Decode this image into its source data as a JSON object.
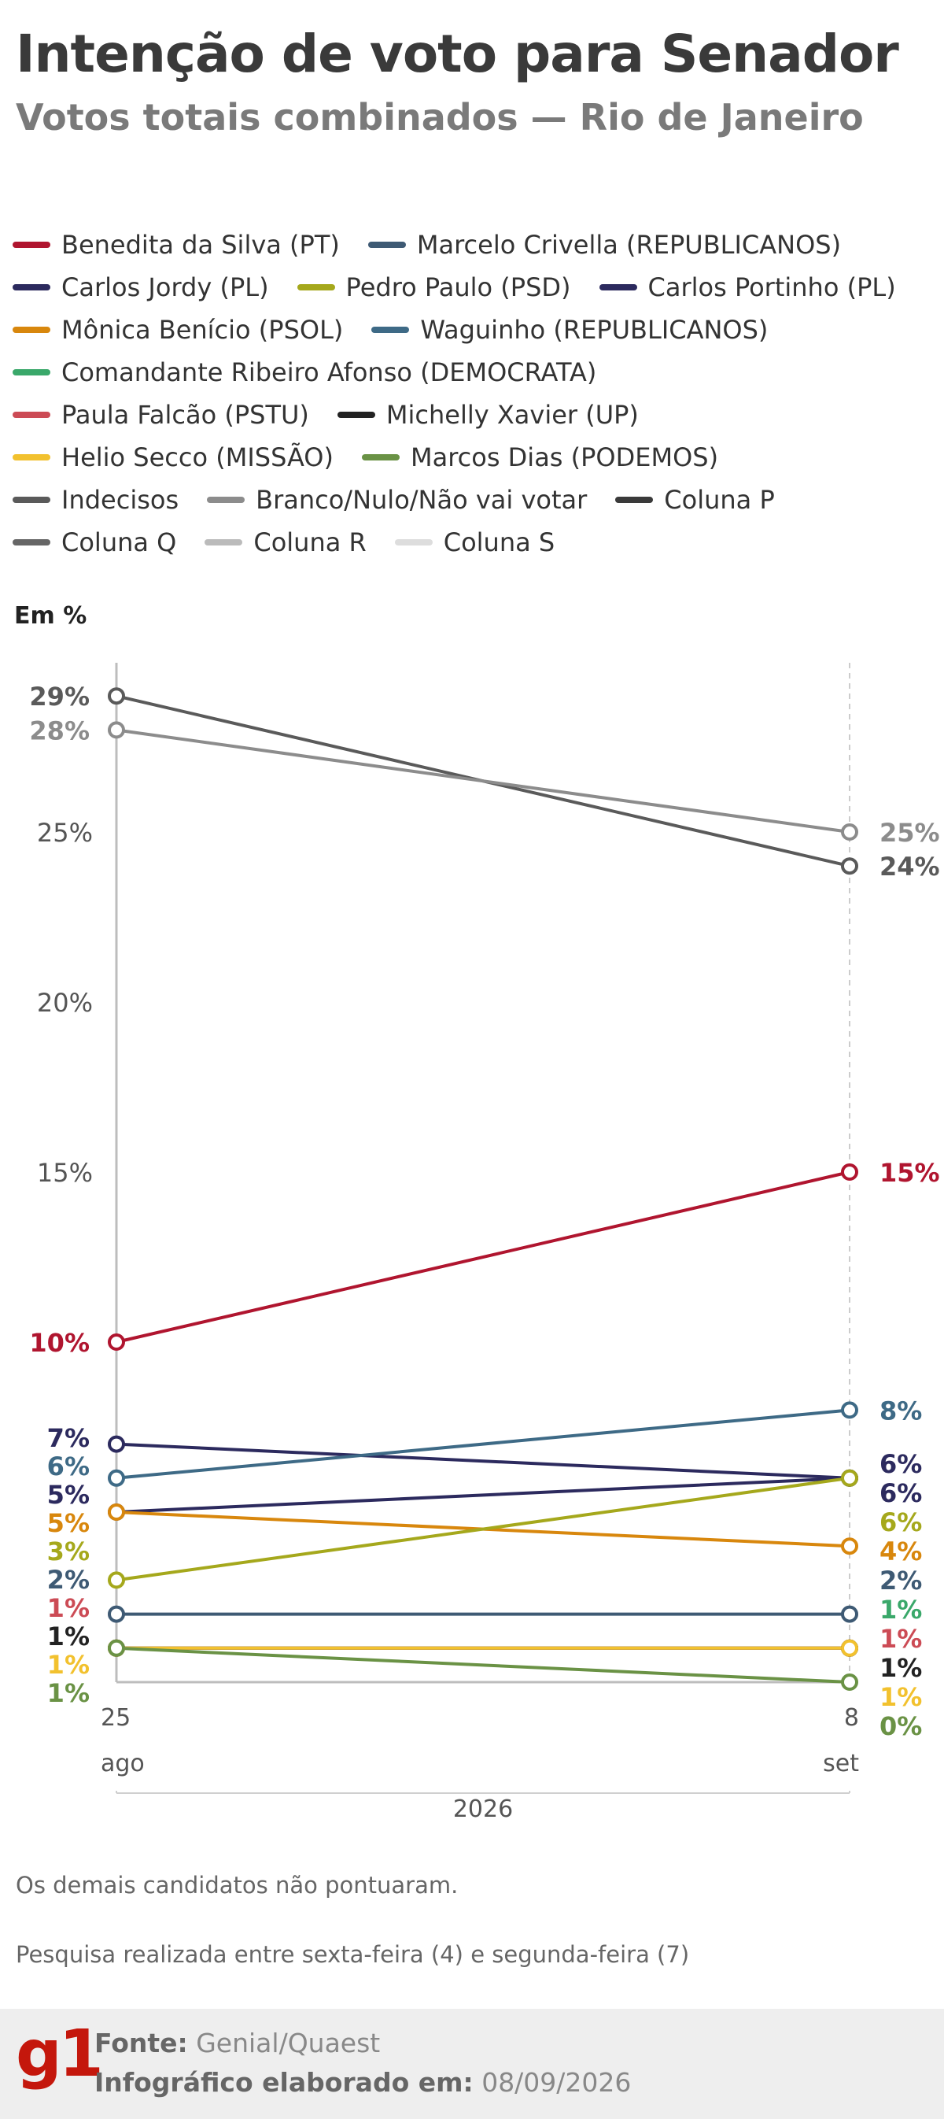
{
  "header": {
    "title": "Intenção de voto para Senador",
    "subtitle": "Votos totais combinados — Rio de Janeiro"
  },
  "legend_rows": [
    [
      {
        "label": "Benedita da Silva (PT)",
        "color": "#b0152f"
      },
      {
        "label": "Marcelo Crivella (REPUBLICANOS)",
        "color": "#3e5a74"
      }
    ],
    [
      {
        "label": "Carlos Jordy (PL)",
        "color": "#2c2a5e"
      },
      {
        "label": "Pedro Paulo (PSD)",
        "color": "#a5a81c"
      },
      {
        "label": "Carlos Portinho (PL)",
        "color": "#2c2a5e"
      }
    ],
    [
      {
        "label": "Mônica Benício (PSOL)",
        "color": "#d8870d"
      },
      {
        "label": "Waguinho (REPUBLICANOS)",
        "color": "#3e6a86"
      }
    ],
    [
      {
        "label": "Comandante Ribeiro Afonso (DEMOCRATA)",
        "color": "#3aa86a"
      }
    ],
    [
      {
        "label": "Paula Falcão (PSTU)",
        "color": "#cc4b55"
      },
      {
        "label": "Michelly Xavier (UP)",
        "color": "#222222"
      }
    ],
    [
      {
        "label": "Helio Secco (MISSÃO)",
        "color": "#f2c12e"
      },
      {
        "label": "Marcos Dias (PODEMOS)",
        "color": "#6a9245"
      }
    ],
    [
      {
        "label": "Indecisos",
        "color": "#5a5a5a"
      },
      {
        "label": "Branco/Nulo/Não vai votar",
        "color": "#8c8c8c"
      },
      {
        "label": "Coluna P",
        "color": "#3a3a3a"
      }
    ],
    [
      {
        "label": "Coluna Q",
        "color": "#666666"
      },
      {
        "label": "Coluna R",
        "color": "#bbbbbb"
      },
      {
        "label": "Coluna S",
        "color": "#dddddd"
      }
    ]
  ],
  "chart_data": {
    "type": "line",
    "ylabel": "Em %",
    "y_ticks": [
      "15%",
      "20%",
      "25%"
    ],
    "ylim": [
      0,
      29
    ],
    "x_ticks": [
      {
        "day": "25",
        "month": "ago"
      },
      {
        "day": "8",
        "month": "set"
      }
    ],
    "year_label": "2026",
    "series": [
      {
        "name": "Indecisos",
        "color": "#5a5a5a",
        "values": [
          29,
          24
        ],
        "labels": [
          "29%",
          "24%"
        ]
      },
      {
        "name": "Branco/Nulo/Não vai votar",
        "color": "#8c8c8c",
        "values": [
          28,
          25
        ],
        "labels": [
          "28%",
          "25%"
        ]
      },
      {
        "name": "Benedita da Silva (PT)",
        "color": "#b0152f",
        "values": [
          10,
          15
        ],
        "labels": [
          "10%",
          "15%"
        ]
      },
      {
        "name": "Carlos Jordy (PL)",
        "color": "#2c2a5e",
        "values": [
          7,
          6
        ],
        "labels": [
          "7%",
          "6%"
        ]
      },
      {
        "name": "Waguinho (REPUBLICANOS)",
        "color": "#3e6a86",
        "values": [
          6,
          8
        ],
        "labels": [
          "6%",
          "8%"
        ]
      },
      {
        "name": "Carlos Portinho (PL)",
        "color": "#2c2a5e",
        "values": [
          5,
          6
        ],
        "labels": [
          "5%",
          "6%"
        ]
      },
      {
        "name": "Mônica Benício (PSOL)",
        "color": "#d8870d",
        "values": [
          5,
          4
        ],
        "labels": [
          "5%",
          "4%"
        ]
      },
      {
        "name": "Pedro Paulo (PSD)",
        "color": "#a5a81c",
        "values": [
          3,
          6
        ],
        "labels": [
          "3%",
          "6%"
        ]
      },
      {
        "name": "Marcelo Crivella (REPUBLICANOS)",
        "color": "#3e5a74",
        "values": [
          2,
          2
        ],
        "labels": [
          "2%",
          "2%"
        ]
      },
      {
        "name": "Comandante Ribeiro Afonso (DEMOCRATA)",
        "color": "#3aa86a",
        "values": [
          null,
          1
        ],
        "labels": [
          "",
          "1%"
        ]
      },
      {
        "name": "Paula Falcão (PSTU)",
        "color": "#cc4b55",
        "values": [
          1,
          1
        ],
        "labels": [
          "1%",
          "1%"
        ]
      },
      {
        "name": "Michelly Xavier (UP)",
        "color": "#222222",
        "values": [
          1,
          1
        ],
        "labels": [
          "1%",
          "1%"
        ]
      },
      {
        "name": "Helio Secco (MISSÃO)",
        "color": "#f2c12e",
        "values": [
          1,
          1
        ],
        "labels": [
          "1%",
          "1%"
        ]
      },
      {
        "name": "Marcos Dias (PODEMOS)",
        "color": "#6a9245",
        "values": [
          1,
          0
        ],
        "labels": [
          "1%",
          "0%"
        ]
      }
    ]
  },
  "notes": {
    "not_scored": "Os demais candidatos não pontuaram.",
    "survey_period": "Pesquisa realizada entre sexta-feira (4) e segunda-feira (7)"
  },
  "footer": {
    "logo": "g1",
    "source_label": "Fonte:",
    "source_value": " Genial/Quaest",
    "credit_label": "Infográfico elaborado em:",
    "credit_value": " 08/09/2026"
  }
}
